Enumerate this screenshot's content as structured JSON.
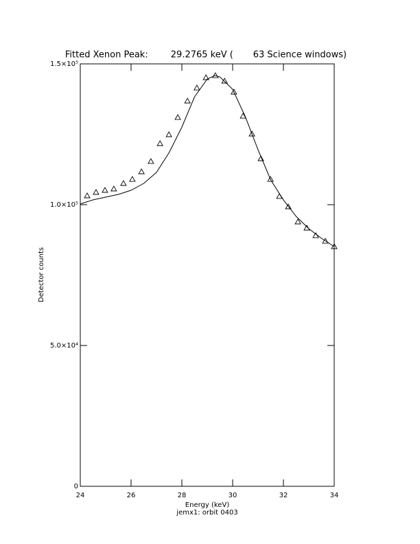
{
  "chart_data": {
    "type": "scatter",
    "title": "Fitted Xenon Peak:        29.2765 keV (       63 Science windows)",
    "x_label": "Energy (keV)",
    "y_label": "Detector counts",
    "footnote": "jemx1: orbit 0403",
    "color": "#000000",
    "xlim": [
      24,
      34
    ],
    "ylim": [
      0,
      150000
    ],
    "xticks": [
      24,
      26,
      28,
      30,
      32,
      34
    ],
    "yticks": [
      0,
      {
        "value": 50000,
        "label": "5.0×10⁴"
      },
      {
        "value": 100000,
        "label": "1.0×10⁵"
      },
      {
        "value": 150000,
        "label": "1.5×10⁵"
      }
    ],
    "series": [
      {
        "marker": "triangle",
        "x": [
          24.27,
          24.62,
          24.97,
          25.32,
          25.7,
          26.05,
          26.41,
          26.78,
          27.14,
          27.49,
          27.84,
          28.22,
          28.59,
          28.95,
          29.32,
          29.68,
          30.05,
          30.41,
          30.76,
          31.11,
          31.49,
          31.84,
          32.19,
          32.57,
          32.92,
          33.27,
          33.65,
          34.0
        ],
        "values": [
          103170,
          104390,
          105120,
          105610,
          107560,
          109020,
          111710,
          115370,
          121710,
          124880,
          130980,
          136830,
          141460,
          145120,
          145850,
          143900,
          140000,
          131460,
          125120,
          116340,
          109020,
          102930,
          99270,
          93900,
          91710,
          89020,
          87070,
          85120
        ]
      },
      {
        "marker": "line",
        "x": [
          24.0,
          24.5,
          25.0,
          25.5,
          26.0,
          26.5,
          27.0,
          27.5,
          28.0,
          28.5,
          29.0,
          29.3,
          29.5,
          30.0,
          30.5,
          31.0,
          31.5,
          32.0,
          32.5,
          33.0,
          33.5,
          34.0
        ],
        "values": [
          100240,
          101700,
          102680,
          103660,
          105120,
          107560,
          111460,
          118540,
          127560,
          138290,
          144630,
          145850,
          145360,
          140970,
          131220,
          119510,
          108780,
          101700,
          95850,
          91460,
          88050,
          85120
        ]
      }
    ]
  }
}
